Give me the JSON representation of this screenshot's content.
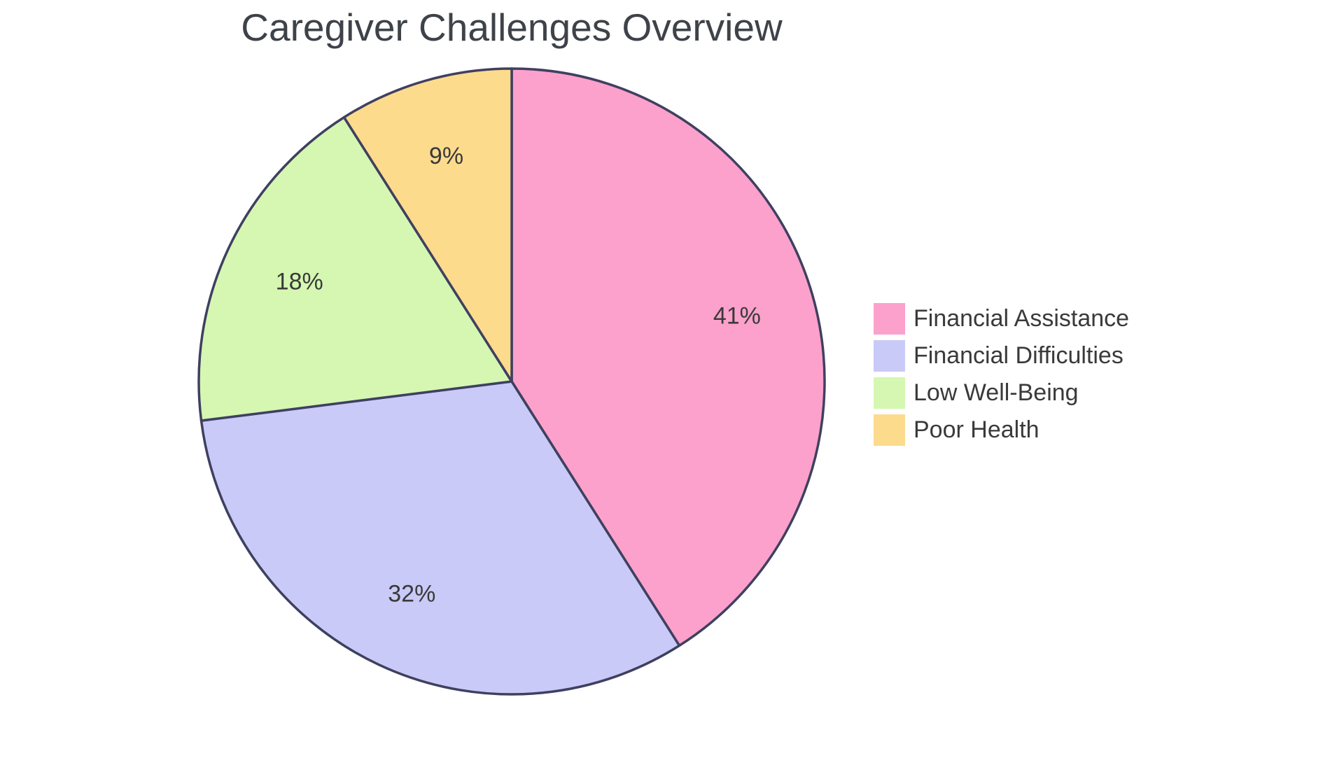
{
  "title": {
    "text": "Caregiver Challenges Overview"
  },
  "chart_data": {
    "type": "pie",
    "title": "Caregiver Challenges Overview",
    "start_angle": "top",
    "direction": "clockwise",
    "legend_position": "right",
    "slices": [
      {
        "label": "Financial Assistance",
        "value": 41,
        "pct_label": "41%",
        "color": "#FCA1CB"
      },
      {
        "label": "Financial Difficulties",
        "value": 32,
        "pct_label": "32%",
        "color": "#C9CAF7"
      },
      {
        "label": "Low Well-Being",
        "value": 18,
        "pct_label": "18%",
        "color": "#D5F7B2"
      },
      {
        "label": "Poor Health",
        "value": 9,
        "pct_label": "9%",
        "color": "#FDDB8D"
      }
    ],
    "colors": {
      "slice_outline": "#3F4060",
      "label_text": "#3A3A3A",
      "title_text": "#3E4249"
    }
  }
}
